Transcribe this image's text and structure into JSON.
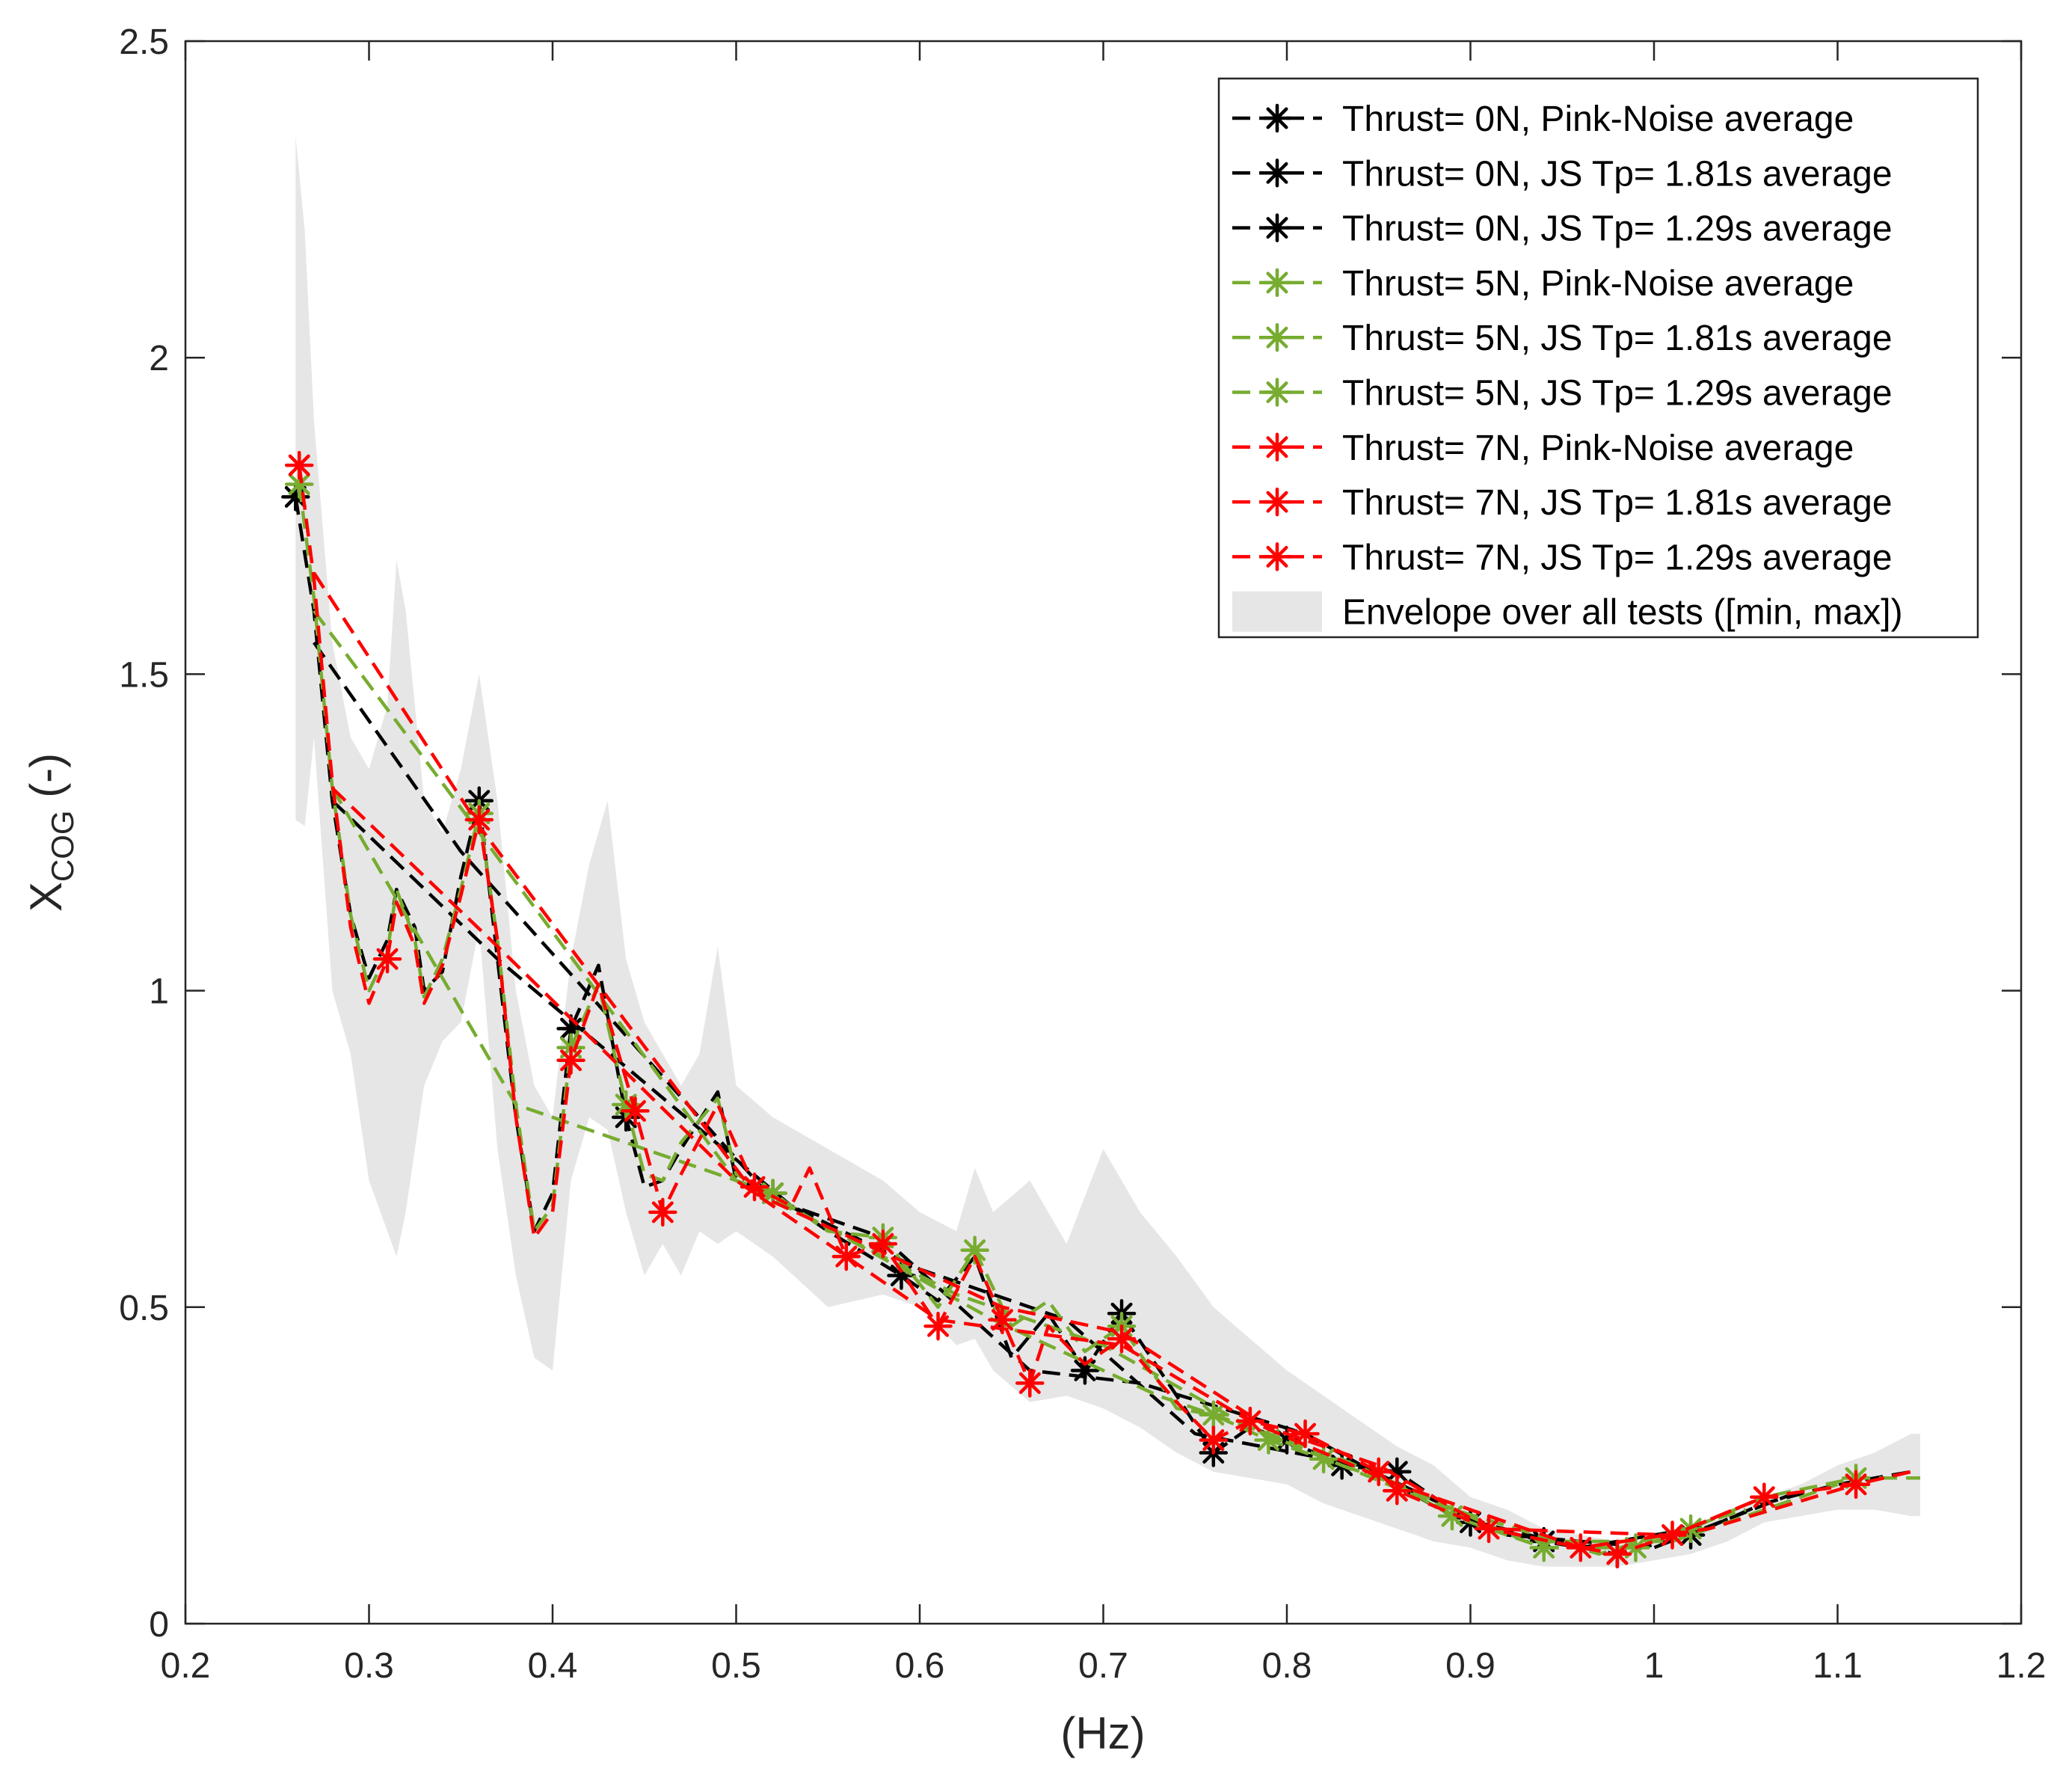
{
  "chart_data": {
    "type": "line",
    "title": "",
    "xlabel": "(Hz)",
    "ylabel_main": "X",
    "ylabel_sub": "COG",
    "ylabel_tail": " (-)",
    "xlim": [
      0.2,
      1.2
    ],
    "ylim": [
      0,
      2.5
    ],
    "xticks": [
      0.2,
      0.3,
      0.4,
      0.5,
      0.6,
      0.7,
      0.8,
      0.9,
      1,
      1.1,
      1.2
    ],
    "xtick_labels": [
      "0.2",
      "0.3",
      "0.4",
      "0.5",
      "0.6",
      "0.7",
      "0.8",
      "0.9",
      "1",
      "1.1",
      "1.2"
    ],
    "yticks": [
      0,
      0.5,
      1,
      1.5,
      2,
      2.5
    ],
    "ytick_labels": [
      "0",
      "0.5",
      "1",
      "1.5",
      "2",
      "2.5"
    ],
    "grid": false,
    "legend_position": "top-right",
    "colors": {
      "black": "#000000",
      "green": "#77ac30",
      "red": "#ff0000",
      "envelope": "#e6e6e6"
    },
    "envelope": {
      "name": "Envelope over all tests ([min, max])",
      "x": [
        0.26,
        0.265,
        0.27,
        0.28,
        0.29,
        0.3,
        0.31,
        0.315,
        0.32,
        0.33,
        0.34,
        0.35,
        0.36,
        0.37,
        0.38,
        0.39,
        0.4,
        0.41,
        0.42,
        0.43,
        0.44,
        0.45,
        0.46,
        0.47,
        0.48,
        0.49,
        0.5,
        0.52,
        0.55,
        0.58,
        0.6,
        0.62,
        0.63,
        0.64,
        0.66,
        0.68,
        0.7,
        0.72,
        0.74,
        0.76,
        0.78,
        0.8,
        0.82,
        0.84,
        0.86,
        0.88,
        0.9,
        0.92,
        0.94,
        0.96,
        0.98,
        1.0,
        1.02,
        1.04,
        1.06,
        1.08,
        1.1,
        1.12,
        1.14,
        1.145
      ],
      "upper": [
        2.35,
        2.2,
        1.9,
        1.55,
        1.4,
        1.35,
        1.45,
        1.68,
        1.6,
        1.3,
        1.25,
        1.35,
        1.5,
        1.3,
        1.0,
        0.85,
        0.8,
        1.05,
        1.2,
        1.3,
        1.05,
        0.95,
        0.9,
        0.85,
        0.9,
        1.07,
        0.85,
        0.8,
        0.75,
        0.7,
        0.65,
        0.62,
        0.72,
        0.65,
        0.7,
        0.6,
        0.75,
        0.65,
        0.58,
        0.5,
        0.45,
        0.4,
        0.36,
        0.32,
        0.28,
        0.25,
        0.2,
        0.18,
        0.15,
        0.14,
        0.13,
        0.13,
        0.15,
        0.17,
        0.2,
        0.22,
        0.25,
        0.27,
        0.3,
        0.3
      ],
      "lower": [
        1.27,
        1.26,
        1.4,
        1.0,
        0.9,
        0.7,
        0.62,
        0.58,
        0.65,
        0.85,
        0.92,
        0.95,
        1.1,
        0.75,
        0.55,
        0.42,
        0.4,
        0.7,
        0.8,
        0.78,
        0.65,
        0.55,
        0.6,
        0.55,
        0.62,
        0.6,
        0.62,
        0.58,
        0.5,
        0.52,
        0.5,
        0.44,
        0.45,
        0.4,
        0.35,
        0.36,
        0.34,
        0.31,
        0.27,
        0.24,
        0.23,
        0.22,
        0.19,
        0.17,
        0.15,
        0.13,
        0.12,
        0.1,
        0.09,
        0.09,
        0.09,
        0.1,
        0.11,
        0.13,
        0.16,
        0.17,
        0.18,
        0.18,
        0.17,
        0.17
      ]
    },
    "series": [
      {
        "name": "Thrust=  0N, Pink-Noise average",
        "color": "black",
        "x": [
          0.26,
          0.27,
          0.28,
          0.29,
          0.3,
          0.31,
          0.315,
          0.325,
          0.33,
          0.34,
          0.35,
          0.36,
          0.37,
          0.38,
          0.39,
          0.4,
          0.41,
          0.425,
          0.44,
          0.45,
          0.46,
          0.47,
          0.49,
          0.5,
          0.52,
          0.55,
          0.59,
          0.61,
          0.63,
          0.65,
          0.67,
          0.69,
          0.71,
          0.74,
          0.76,
          0.78,
          0.8,
          0.83,
          0.86,
          0.9,
          0.94,
          0.98,
          1.02,
          1.06,
          1.1,
          1.14
        ],
        "y": [
          1.78,
          1.6,
          1.3,
          1.12,
          1.02,
          1.08,
          1.16,
          1.1,
          1.0,
          1.03,
          1.18,
          1.3,
          1.05,
          0.8,
          0.62,
          0.68,
          0.94,
          1.04,
          0.8,
          0.69,
          0.7,
          0.75,
          0.84,
          0.7,
          0.68,
          0.62,
          0.55,
          0.51,
          0.58,
          0.42,
          0.49,
          0.4,
          0.49,
          0.36,
          0.27,
          0.31,
          0.29,
          0.25,
          0.24,
          0.16,
          0.13,
          0.11,
          0.14,
          0.19,
          0.22,
          0.24
        ],
        "markers": [
          0,
          11,
          16,
          18,
          24,
          26,
          31,
          32,
          34,
          36,
          37,
          38,
          39,
          40,
          41,
          42
        ]
      },
      {
        "name": "Thrust=  0N, JS Tp= 1.81s average",
        "color": "black",
        "x": [
          0.27,
          0.35,
          0.52,
          0.58,
          0.66,
          0.72,
          0.81,
          0.89,
          0.96,
          1.02
        ],
        "y": [
          1.55,
          1.22,
          0.67,
          0.61,
          0.4,
          0.38,
          0.3,
          0.17,
          0.12,
          0.15
        ],
        "markers": []
      },
      {
        "name": "Thrust=  0N, JS Tp= 1.29s average",
        "color": "black",
        "x": [
          0.28,
          0.37,
          0.53,
          0.6,
          0.68,
          0.75,
          0.84,
          0.92,
          1.0,
          1.08
        ],
        "y": [
          1.3,
          1.05,
          0.66,
          0.56,
          0.48,
          0.3,
          0.25,
          0.14,
          0.12,
          0.21
        ],
        "markers": []
      },
      {
        "name": "Thrust=  5N, Pink-Noise average",
        "color": "green",
        "x": [
          0.262,
          0.27,
          0.28,
          0.29,
          0.3,
          0.31,
          0.315,
          0.325,
          0.33,
          0.34,
          0.35,
          0.36,
          0.37,
          0.38,
          0.39,
          0.4,
          0.41,
          0.425,
          0.44,
          0.45,
          0.46,
          0.47,
          0.49,
          0.5,
          0.52,
          0.55,
          0.58,
          0.61,
          0.63,
          0.65,
          0.67,
          0.69,
          0.71,
          0.74,
          0.76,
          0.79,
          0.82,
          0.86,
          0.89,
          0.94,
          0.99,
          1.02,
          1.06,
          1.11,
          1.145
        ],
        "y": [
          1.8,
          1.62,
          1.32,
          1.12,
          1.0,
          1.06,
          1.16,
          1.08,
          0.99,
          1.05,
          1.16,
          1.28,
          1.08,
          0.82,
          0.62,
          0.66,
          0.91,
          1.01,
          0.82,
          0.71,
          0.7,
          0.76,
          0.83,
          0.71,
          0.68,
          0.62,
          0.61,
          0.5,
          0.59,
          0.47,
          0.51,
          0.43,
          0.47,
          0.34,
          0.33,
          0.29,
          0.26,
          0.22,
          0.17,
          0.12,
          0.12,
          0.15,
          0.2,
          0.23,
          0.23
        ],
        "markers": [
          0,
          11,
          16,
          18,
          24,
          26,
          28,
          32,
          34,
          35,
          36,
          38,
          39,
          40,
          41,
          43
        ]
      },
      {
        "name": "Thrust=  5N, JS Tp= 1.81s average",
        "color": "green",
        "x": [
          0.27,
          0.36,
          0.5,
          0.62,
          0.7,
          0.78,
          0.88,
          0.97,
          1.05
        ],
        "y": [
          1.6,
          1.25,
          0.7,
          0.52,
          0.44,
          0.31,
          0.19,
          0.11,
          0.18
        ],
        "markers": []
      },
      {
        "name": "Thrust=  5N, JS Tp= 1.29s average",
        "color": "green",
        "x": [
          0.28,
          0.38,
          0.51,
          0.64,
          0.73,
          0.83,
          0.93,
          1.01,
          1.1
        ],
        "y": [
          1.32,
          0.82,
          0.69,
          0.48,
          0.36,
          0.26,
          0.13,
          0.13,
          0.22
        ],
        "markers": []
      },
      {
        "name": "Thrust=  7N, Pink-Noise average",
        "color": "red",
        "x": [
          0.262,
          0.27,
          0.28,
          0.29,
          0.3,
          0.31,
          0.315,
          0.325,
          0.33,
          0.34,
          0.35,
          0.36,
          0.37,
          0.38,
          0.39,
          0.4,
          0.41,
          0.425,
          0.445,
          0.46,
          0.47,
          0.49,
          0.51,
          0.53,
          0.54,
          0.56,
          0.58,
          0.61,
          0.63,
          0.645,
          0.66,
          0.67,
          0.69,
          0.71,
          0.74,
          0.76,
          0.78,
          0.81,
          0.85,
          0.86,
          0.91,
          0.96,
          0.98,
          1.01,
          1.06,
          1.11,
          1.14
        ],
        "y": [
          1.83,
          1.65,
          1.33,
          1.1,
          0.98,
          1.05,
          1.14,
          1.07,
          0.98,
          1.04,
          1.15,
          1.27,
          1.08,
          0.8,
          0.61,
          0.65,
          0.89,
          1.01,
          0.81,
          0.65,
          0.71,
          0.82,
          0.69,
          0.66,
          0.72,
          0.58,
          0.6,
          0.47,
          0.58,
          0.48,
          0.38,
          0.47,
          0.41,
          0.45,
          0.35,
          0.29,
          0.32,
          0.3,
          0.24,
          0.21,
          0.15,
          0.12,
          0.11,
          0.14,
          0.2,
          0.22,
          0.24
        ],
        "markers": [
          0,
          5,
          11,
          16,
          18,
          19,
          22,
          25,
          26,
          27,
          29,
          30,
          33,
          35,
          36,
          37,
          38,
          39,
          40,
          41,
          42,
          43,
          44,
          45
        ]
      },
      {
        "name": "Thrust=  7N, JS Tp= 1.81s average",
        "color": "red",
        "x": [
          0.27,
          0.36,
          0.51,
          0.645,
          0.71,
          0.79,
          0.85,
          0.91,
          1.01,
          1.06
        ],
        "y": [
          1.66,
          1.26,
          0.68,
          0.5,
          0.46,
          0.31,
          0.25,
          0.15,
          0.14,
          0.2
        ],
        "markers": []
      },
      {
        "name": "Thrust=  7N, JS Tp= 1.29s average",
        "color": "red",
        "x": [
          0.28,
          0.37,
          0.5,
          0.61,
          0.71,
          0.78,
          0.86,
          0.96,
          1.03,
          1.11
        ],
        "y": [
          1.32,
          1.07,
          0.7,
          0.48,
          0.44,
          0.32,
          0.22,
          0.12,
          0.15,
          0.22
        ],
        "markers": []
      }
    ]
  }
}
